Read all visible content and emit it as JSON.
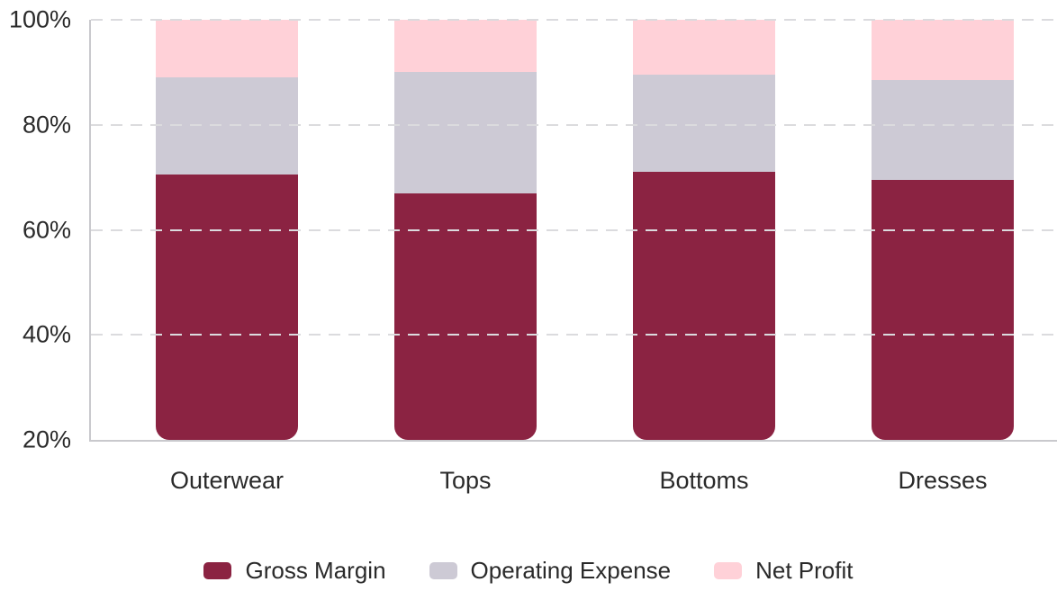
{
  "chart_data": {
    "type": "bar",
    "subtype": "stacked-100-percent",
    "title": "",
    "xlabel": "",
    "ylabel": "",
    "categories": [
      "Outerwear",
      "Tops",
      "Bottoms",
      "Dresses"
    ],
    "series": [
      {
        "name": "Gross Margin",
        "color": "#8B2342",
        "values": [
          70.5,
          67.0,
          71.0,
          69.5
        ]
      },
      {
        "name": "Operating Expense",
        "color": "#CDCAD5",
        "values": [
          18.5,
          23.0,
          18.5,
          19.0
        ]
      },
      {
        "name": "Net Profit",
        "color": "#FFD1D8",
        "values": [
          11.0,
          10.0,
          10.5,
          11.5
        ]
      }
    ],
    "ylim": [
      20,
      100
    ],
    "yticks": [
      20,
      40,
      60,
      80,
      100
    ],
    "ytick_suffix": "%",
    "grid": "horizontal-dashed",
    "legend_position": "bottom-center",
    "legend_labels": [
      "Gross Margin",
      "Operating Expense",
      "Net Profit"
    ]
  },
  "colors": {
    "background": "#FFFFFF",
    "text": "#2A2A2A",
    "axis_line": "#C9C9CD",
    "gridline": "#DBDBDE"
  }
}
